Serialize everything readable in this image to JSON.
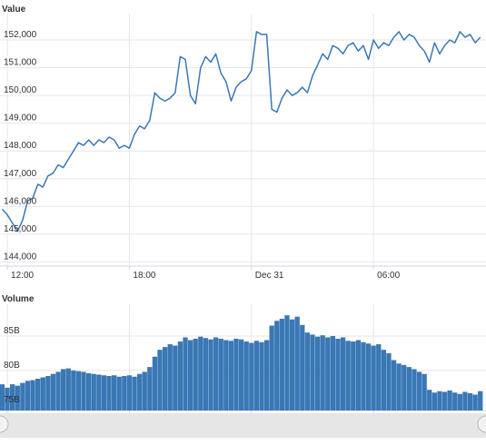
{
  "chart_data": [
    {
      "type": "line",
      "title": "Value",
      "color": "#3a78b5",
      "grid": true,
      "xlim": [
        -0.36,
        23.53
      ],
      "xticks": [
        {
          "value": 0,
          "label": "12:00"
        },
        {
          "value": 6,
          "label": "18:00"
        },
        {
          "value": 12,
          "label": "Dec 31"
        },
        {
          "value": 18,
          "label": "06:00"
        }
      ],
      "ylim": [
        143850,
        152950
      ],
      "yticks": [
        {
          "value": 144000,
          "label": "144,000"
        },
        {
          "value": 145000,
          "label": "145,000"
        },
        {
          "value": 146000,
          "label": "146,000"
        },
        {
          "value": 147000,
          "label": "147,000"
        },
        {
          "value": 148000,
          "label": "148,000"
        },
        {
          "value": 149000,
          "label": "149,000"
        },
        {
          "value": 150000,
          "label": "150,000"
        },
        {
          "value": 151000,
          "label": "151,000"
        },
        {
          "value": 152000,
          "label": "152,000"
        }
      ],
      "x": [
        -0.25,
        0,
        0.25,
        0.5,
        0.75,
        1,
        1.25,
        1.5,
        1.75,
        2,
        2.25,
        2.5,
        2.75,
        3,
        3.25,
        3.5,
        3.75,
        4,
        4.25,
        4.5,
        4.75,
        5,
        5.25,
        5.5,
        5.75,
        6,
        6.25,
        6.5,
        6.75,
        7,
        7.25,
        7.5,
        7.75,
        8,
        8.25,
        8.5,
        8.75,
        9,
        9.25,
        9.5,
        9.75,
        10,
        10.25,
        10.5,
        10.75,
        11,
        11.25,
        11.5,
        11.75,
        12,
        12.25,
        12.5,
        12.75,
        13,
        13.25,
        13.5,
        13.75,
        14,
        14.25,
        14.5,
        14.75,
        15,
        15.25,
        15.5,
        15.75,
        16,
        16.25,
        16.5,
        16.75,
        17,
        17.25,
        17.5,
        17.75,
        18,
        18.25,
        18.5,
        18.75,
        19,
        19.25,
        19.5,
        19.75,
        20,
        20.25,
        20.5,
        20.75,
        21,
        21.25,
        21.5,
        21.75,
        22,
        22.25,
        22.5,
        22.75,
        23,
        23.25
      ],
      "values": [
        145900,
        145700,
        145400,
        145100,
        145500,
        146200,
        146300,
        146800,
        146700,
        147100,
        147200,
        147500,
        147400,
        147700,
        148000,
        148300,
        148200,
        148400,
        148200,
        148400,
        148300,
        148500,
        148400,
        148100,
        148200,
        148100,
        148600,
        148900,
        148800,
        149100,
        150100,
        149900,
        149800,
        149900,
        150100,
        151400,
        151300,
        150000,
        149700,
        151000,
        151400,
        151200,
        151500,
        150800,
        150500,
        149800,
        150300,
        150500,
        150600,
        150900,
        152300,
        152200,
        152200,
        149500,
        149400,
        149900,
        150200,
        150000,
        150100,
        150300,
        150100,
        150700,
        151100,
        151500,
        151300,
        151800,
        151700,
        151500,
        151800,
        151900,
        151600,
        151800,
        151300,
        152000,
        151700,
        151900,
        151800,
        152100,
        152300,
        152000,
        152200,
        152100,
        151800,
        151600,
        151200,
        151900,
        151500,
        151800,
        152000,
        151900,
        152300,
        152100,
        152200,
        151900,
        152100
      ]
    },
    {
      "type": "bar",
      "title": "Volume",
      "color": "#3a78b5",
      "grid": true,
      "xlim": [
        -0.36,
        23.53
      ],
      "xticks": [
        {
          "value": 0,
          "label": "12:00"
        },
        {
          "value": 6,
          "label": "18:00"
        },
        {
          "value": 12,
          "label": "Dec 31"
        },
        {
          "value": 18,
          "label": "06:00"
        }
      ],
      "ylim": [
        74.2,
        89.6
      ],
      "yticks": [
        {
          "value": 75,
          "label": "75B"
        },
        {
          "value": 80,
          "label": "80B"
        },
        {
          "value": 85,
          "label": "85B"
        }
      ],
      "x": [
        -0.25,
        0,
        0.25,
        0.5,
        0.75,
        1,
        1.25,
        1.5,
        1.75,
        2,
        2.25,
        2.5,
        2.75,
        3,
        3.25,
        3.5,
        3.75,
        4,
        4.25,
        4.5,
        4.75,
        5,
        5.25,
        5.5,
        5.75,
        6,
        6.25,
        6.5,
        6.75,
        7,
        7.25,
        7.5,
        7.75,
        8,
        8.25,
        8.5,
        8.75,
        9,
        9.25,
        9.5,
        9.75,
        10,
        10.25,
        10.5,
        10.75,
        11,
        11.25,
        11.5,
        11.75,
        12,
        12.25,
        12.5,
        12.75,
        13,
        13.25,
        13.5,
        13.75,
        14,
        14.25,
        14.5,
        14.75,
        15,
        15.25,
        15.5,
        15.75,
        16,
        16.25,
        16.5,
        16.75,
        17,
        17.25,
        17.5,
        17.75,
        18,
        18.25,
        18.5,
        18.75,
        19,
        19.25,
        19.5,
        19.75,
        20,
        20.25,
        20.5,
        20.75,
        21,
        21.25,
        21.5,
        21.75,
        22,
        22.25,
        22.5,
        22.75,
        23,
        23.25
      ],
      "values": [
        78,
        77.5,
        78,
        77.8,
        78.2,
        78.5,
        78.6,
        78.8,
        79,
        79.2,
        79.5,
        79.8,
        80.2,
        80.3,
        80,
        79.9,
        79.8,
        79.6,
        79.5,
        79.4,
        79.3,
        79.2,
        79.3,
        79.1,
        79.2,
        79.3,
        79.1,
        79.5,
        79.8,
        80.5,
        82,
        83,
        83.4,
        83.8,
        83.6,
        84.2,
        84.8,
        84.4,
        84.6,
        84.9,
        84.7,
        84.5,
        84.8,
        84.6,
        84.4,
        84.3,
        84.6,
        84.5,
        84.2,
        84,
        84.3,
        84.1,
        84.4,
        86.5,
        87.2,
        87.5,
        88,
        87.4,
        87.8,
        86.6,
        85.5,
        85.2,
        84.9,
        85.1,
        84.8,
        85,
        84.6,
        84.8,
        84.3,
        84.2,
        84.4,
        84.1,
        83.9,
        83.6,
        83.8,
        83,
        82.5,
        81.5,
        81,
        80.8,
        80.5,
        80.2,
        79.8,
        79.5,
        77.2,
        76.8,
        77,
        76.9,
        77.1,
        76.8,
        76.6,
        76.9,
        76.7,
        76.5,
        77
      ]
    }
  ]
}
